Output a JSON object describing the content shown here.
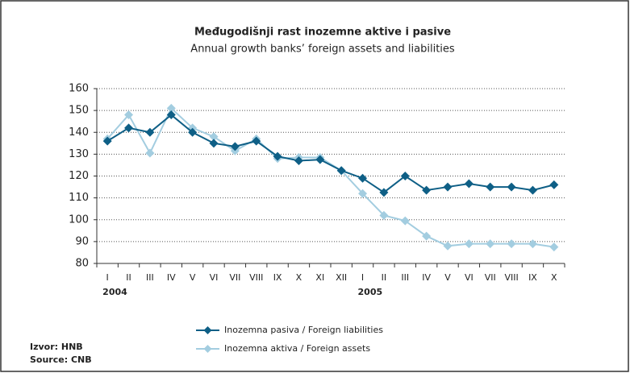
{
  "chart_data": {
    "type": "line",
    "title": "Međugodišnji rast inozemne aktive i pasive",
    "subtitle": "Annual growth banks’ foreign assets and liabilities",
    "categories": [
      "I",
      "II",
      "III",
      "IV",
      "V",
      "VI",
      "VII",
      "VIII",
      "IX",
      "X",
      "XI",
      "XII",
      "I",
      "II",
      "III",
      "IV",
      "V",
      "VI",
      "VII",
      "VIII",
      "IX",
      "X"
    ],
    "groups": [
      {
        "label": "2004",
        "count": 12
      },
      {
        "label": "2005",
        "count": 10
      }
    ],
    "series": [
      {
        "name": "Inozemna pasiva / Foreign liabilities",
        "color": "#0e5f86",
        "values": [
          136,
          142,
          140,
          148,
          140,
          135,
          133.5,
          136,
          129,
          127,
          127.5,
          122.5,
          119,
          112.5,
          120,
          113.5,
          115,
          116.5,
          115,
          115,
          113.5,
          116
        ]
      },
      {
        "name": "Inozemna aktiva / Foreign assets",
        "color": "#a3cde0",
        "values": [
          137,
          148,
          130.5,
          151,
          142,
          138,
          131.5,
          137,
          128,
          128.5,
          128.5,
          122.5,
          112,
          102,
          99.5,
          92.5,
          88,
          89,
          89,
          89,
          89,
          87.5
        ]
      }
    ],
    "ylim": [
      80,
      160
    ],
    "yticks": [
      80,
      90,
      100,
      110,
      120,
      130,
      140,
      150,
      160
    ],
    "grid": true,
    "source": [
      "Izvor: HNB",
      "Source: CNB"
    ]
  }
}
